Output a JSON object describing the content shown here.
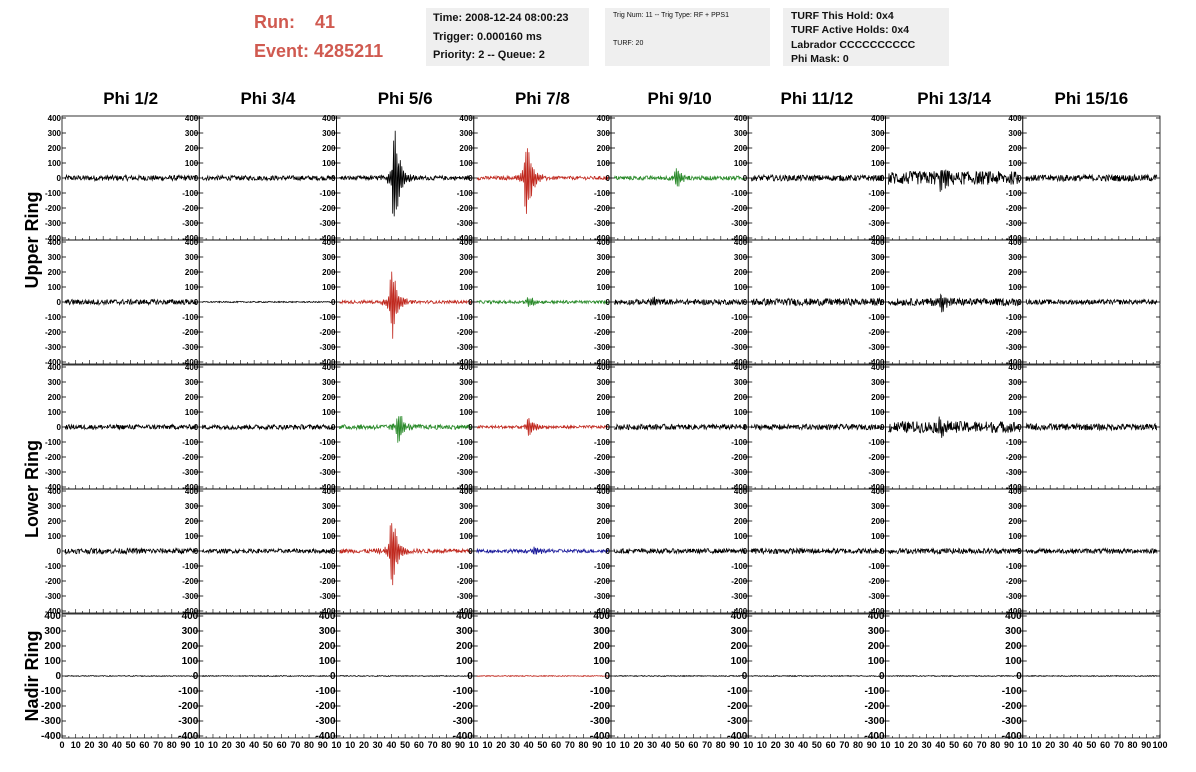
{
  "header": {
    "run_label": "Run:",
    "run_value": "41",
    "event_label": "Event:",
    "event_value": "4285211",
    "time": "Time: 2008-12-24 08:00:23",
    "trigger": "Trigger: 0.000160 ms",
    "priority": "Priority: 2 -- Queue: 2",
    "trig_num": "Trig Num: 11 -- Trig Type: RF + PPS1",
    "turf_num": "TURF: 20",
    "turf_hold": "TURF This Hold: 0x4",
    "turf_active": "TURF Active Holds: 0x4",
    "labrador": "Labrador CCCCCCCCCC",
    "phi_mask": "Phi Mask: 0"
  },
  "colors": {
    "header_red": "#d05a50",
    "trace_black": "#000000",
    "trace_red": "#c0281e",
    "trace_green": "#2a8a2a",
    "trace_blue": "#1a1a9a",
    "box_bg": "#efefef"
  },
  "chart_data": {
    "type": "line",
    "phi_columns": [
      "Phi 1/2",
      "Phi 3/4",
      "Phi 5/6",
      "Phi 7/8",
      "Phi 9/10",
      "Phi 11/12",
      "Phi 13/14",
      "Phi 15/16"
    ],
    "ring_labels": [
      "Upper Ring",
      "Lower Ring",
      "Nadir Ring"
    ],
    "ylim": [
      -400,
      400
    ],
    "y_ticks": [
      400,
      300,
      200,
      100,
      0,
      -100,
      -200,
      -300,
      -400
    ],
    "y_tick_labels": [
      "400",
      "300",
      "200",
      "100",
      "0",
      "-100",
      "-200",
      "-300",
      "-400"
    ],
    "xlim": [
      0,
      100
    ],
    "x_tick_labels": [
      "0",
      "10",
      "20",
      "30",
      "40",
      "50",
      "60",
      "70",
      "80",
      "90",
      "10",
      "10",
      "20",
      "30",
      "40",
      "50",
      "60",
      "70",
      "80",
      "90",
      "10",
      "10",
      "20",
      "30",
      "40",
      "50",
      "60",
      "70",
      "80",
      "90",
      "10",
      "10",
      "20",
      "30",
      "40",
      "50",
      "60",
      "70",
      "80",
      "90",
      "10",
      "10",
      "20",
      "30",
      "40",
      "50",
      "60",
      "70",
      "80",
      "90",
      "10",
      "10",
      "20",
      "30",
      "40",
      "50",
      "60",
      "70",
      "80",
      "90",
      "10",
      "10",
      "20",
      "30",
      "40",
      "50",
      "60",
      "70",
      "80",
      "90",
      "10",
      "10",
      "20",
      "30",
      "40",
      "50",
      "60",
      "70",
      "80",
      "90",
      "100"
    ],
    "panels": [
      [
        {
          "color": "black",
          "noise": 18,
          "pulse_at": 0,
          "pulse_amp": 0
        },
        {
          "color": "black",
          "noise": 16,
          "pulse_at": 0,
          "pulse_amp": 0
        },
        {
          "color": "black",
          "noise": 14,
          "pulse_at": 42,
          "pulse_amp": 380
        },
        {
          "color": "red",
          "noise": 12,
          "pulse_at": 38,
          "pulse_amp": 340
        },
        {
          "color": "green",
          "noise": 14,
          "pulse_at": 48,
          "pulse_amp": 80
        },
        {
          "color": "black",
          "noise": 20,
          "pulse_at": 0,
          "pulse_amp": 0
        },
        {
          "color": "black",
          "noise": 45,
          "pulse_at": 40,
          "pulse_amp": 90
        },
        {
          "color": "black",
          "noise": 22,
          "pulse_at": 0,
          "pulse_amp": 0
        }
      ],
      [
        {
          "color": "black",
          "noise": 18,
          "pulse_at": 0,
          "pulse_amp": 0
        },
        {
          "color": "black",
          "noise": 4,
          "pulse_at": 0,
          "pulse_amp": 0
        },
        {
          "color": "red",
          "noise": 10,
          "pulse_at": 40,
          "pulse_amp": 290
        },
        {
          "color": "green",
          "noise": 10,
          "pulse_at": 40,
          "pulse_amp": 40
        },
        {
          "color": "black",
          "noise": 18,
          "pulse_at": 30,
          "pulse_amp": 40
        },
        {
          "color": "black",
          "noise": 24,
          "pulse_at": 0,
          "pulse_amp": 0
        },
        {
          "color": "black",
          "noise": 24,
          "pulse_at": 40,
          "pulse_amp": 90
        },
        {
          "color": "black",
          "noise": 16,
          "pulse_at": 0,
          "pulse_amp": 0
        }
      ],
      [
        {
          "color": "black",
          "noise": 16,
          "pulse_at": 0,
          "pulse_amp": 0
        },
        {
          "color": "black",
          "noise": 16,
          "pulse_at": 0,
          "pulse_amp": 0
        },
        {
          "color": "green",
          "noise": 16,
          "pulse_at": 45,
          "pulse_amp": 120
        },
        {
          "color": "red",
          "noise": 10,
          "pulse_at": 40,
          "pulse_amp": 70
        },
        {
          "color": "black",
          "noise": 18,
          "pulse_at": 0,
          "pulse_amp": 0
        },
        {
          "color": "black",
          "noise": 18,
          "pulse_at": 0,
          "pulse_amp": 0
        },
        {
          "color": "black",
          "noise": 38,
          "pulse_at": 40,
          "pulse_amp": 50
        },
        {
          "color": "black",
          "noise": 22,
          "pulse_at": 0,
          "pulse_amp": 0
        }
      ],
      [
        {
          "color": "black",
          "noise": 18,
          "pulse_at": 0,
          "pulse_amp": 0
        },
        {
          "color": "black",
          "noise": 14,
          "pulse_at": 0,
          "pulse_amp": 0
        },
        {
          "color": "red",
          "noise": 14,
          "pulse_at": 40,
          "pulse_amp": 300
        },
        {
          "color": "blue",
          "noise": 12,
          "pulse_at": 45,
          "pulse_amp": 30
        },
        {
          "color": "black",
          "noise": 16,
          "pulse_at": 0,
          "pulse_amp": 0
        },
        {
          "color": "black",
          "noise": 18,
          "pulse_at": 0,
          "pulse_amp": 0
        },
        {
          "color": "black",
          "noise": 18,
          "pulse_at": 0,
          "pulse_amp": 0
        },
        {
          "color": "black",
          "noise": 16,
          "pulse_at": 0,
          "pulse_amp": 0
        }
      ],
      [
        {
          "color": "black",
          "noise": 3,
          "pulse_at": 0,
          "pulse_amp": 0
        },
        {
          "color": "black",
          "noise": 3,
          "pulse_at": 0,
          "pulse_amp": 0
        },
        {
          "color": "black",
          "noise": 3,
          "pulse_at": 0,
          "pulse_amp": 0
        },
        {
          "color": "red",
          "noise": 3,
          "pulse_at": 0,
          "pulse_amp": 0
        },
        {
          "color": "black",
          "noise": 3,
          "pulse_at": 0,
          "pulse_amp": 0
        },
        {
          "color": "black",
          "noise": 3,
          "pulse_at": 0,
          "pulse_amp": 0
        },
        {
          "color": "black",
          "noise": 3,
          "pulse_at": 0,
          "pulse_amp": 0
        },
        {
          "color": "black",
          "noise": 3,
          "pulse_at": 0,
          "pulse_amp": 0
        }
      ]
    ]
  }
}
